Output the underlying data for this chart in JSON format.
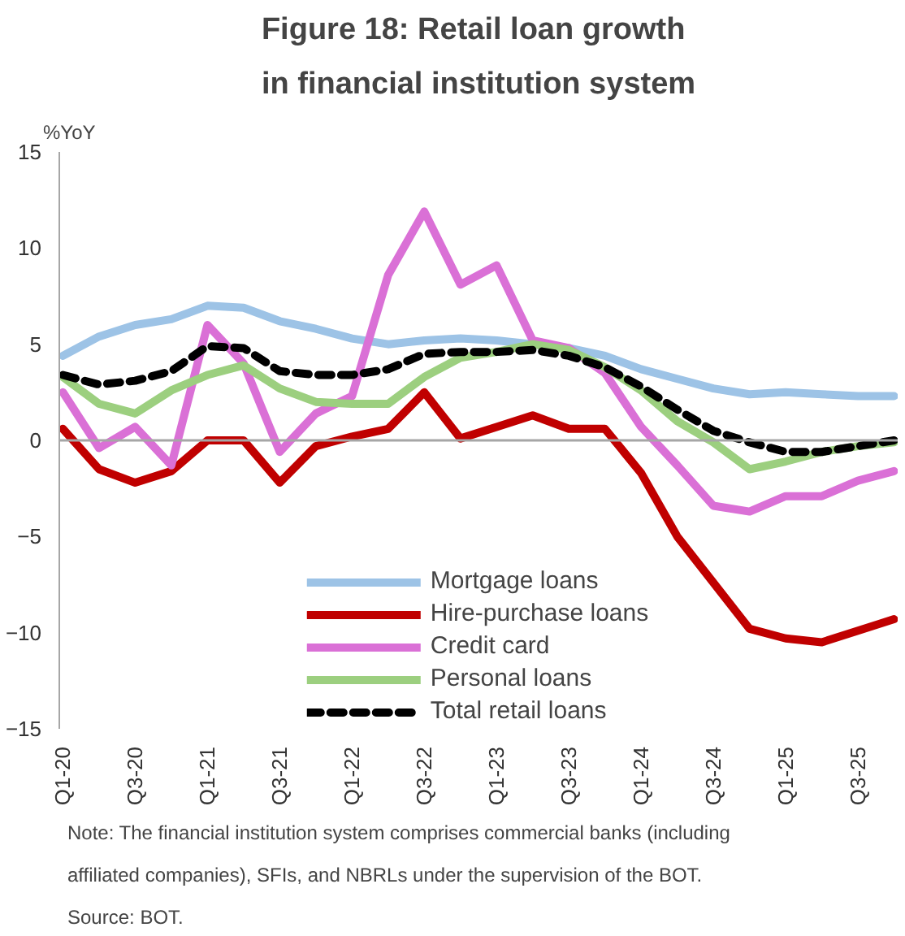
{
  "chart_data": {
    "type": "line",
    "title": "Figure 18: Retail loan growth\nin financial institution system",
    "ylabel": "%YoY",
    "categories": [
      "Q1-20",
      null,
      "Q3-20",
      null,
      "Q1-21",
      null,
      "Q3-21",
      null,
      "Q1-22",
      null,
      "Q3-22",
      null,
      "Q1-23",
      null,
      "Q3-23",
      null,
      "Q1-24",
      null,
      "Q3-24",
      null,
      "Q1-25",
      null,
      "Q3-25",
      null
    ],
    "series": [
      {
        "name": "Mortgage loans",
        "color": "#9dc3e6",
        "values": [
          4.4,
          5.4,
          6.0,
          6.3,
          7.0,
          6.9,
          6.2,
          5.8,
          5.3,
          5.0,
          5.2,
          5.3,
          5.2,
          5.0,
          4.8,
          4.4,
          3.7,
          3.2,
          2.7,
          2.4,
          2.5,
          2.4,
          2.3,
          2.3
        ]
      },
      {
        "name": "Hire-purchase loans",
        "color": "#c00000",
        "values": [
          0.6,
          -1.5,
          -2.2,
          -1.6,
          0.0,
          0.0,
          -2.2,
          -0.3,
          0.2,
          0.6,
          2.5,
          0.1,
          0.7,
          1.3,
          0.6,
          0.6,
          -1.7,
          -5.0,
          -7.4,
          -9.8,
          -10.3,
          -10.5,
          -9.9,
          -9.3
        ]
      },
      {
        "name": "Credit card",
        "color": "#da70d6",
        "values": [
          2.5,
          -0.4,
          0.7,
          -1.3,
          6.0,
          4.0,
          -0.6,
          1.4,
          2.3,
          8.6,
          11.9,
          8.1,
          9.1,
          5.2,
          4.8,
          3.5,
          0.7,
          -1.3,
          -3.4,
          -3.7,
          -2.9,
          -2.9,
          -2.1,
          -1.6
        ]
      },
      {
        "name": "Personal loans",
        "color": "#9ccf7f",
        "values": [
          3.3,
          1.9,
          1.4,
          2.6,
          3.4,
          3.9,
          2.7,
          2.0,
          1.9,
          1.9,
          3.3,
          4.3,
          4.6,
          5.0,
          4.7,
          3.8,
          2.6,
          1.0,
          -0.1,
          -1.5,
          -1.1,
          -0.6,
          -0.3,
          -0.1
        ]
      },
      {
        "name": "Total retail loans",
        "color": "#000000",
        "line_style": "dashed",
        "values": [
          3.4,
          2.9,
          3.1,
          3.6,
          4.9,
          4.8,
          3.6,
          3.4,
          3.4,
          3.7,
          4.5,
          4.6,
          4.6,
          4.7,
          4.4,
          3.8,
          2.8,
          1.6,
          0.5,
          -0.1,
          -0.6,
          -0.6,
          -0.3,
          0.0
        ]
      }
    ],
    "ylim": [
      -15,
      15
    ],
    "yticks": [
      -15,
      -10,
      -5,
      0,
      5,
      10,
      15
    ],
    "grid": false,
    "legend": "bottom",
    "ref_lines": [
      {
        "axis": "y",
        "value": 0,
        "color": "#a6a6a6"
      }
    ],
    "annotations": [
      "Note: The financial institution system comprises commercial banks (including",
      "affiliated companies), SFIs, and NBRLs under the supervision of the BOT.",
      "Source: BOT."
    ]
  }
}
